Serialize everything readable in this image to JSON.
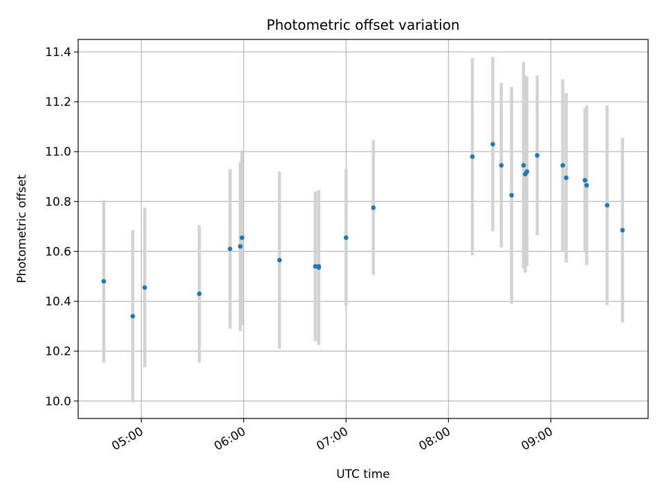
{
  "chart_data": {
    "type": "scatter",
    "title": "Photometric offset variation",
    "xlabel": "UTC time",
    "ylabel": "Photometric offset",
    "x_is_time": true,
    "xlim": [
      "04:23",
      "09:57"
    ],
    "ylim": [
      9.93,
      11.45
    ],
    "xticks": [
      "05:00",
      "06:00",
      "07:00",
      "08:00",
      "09:00"
    ],
    "yticks": [
      10.0,
      10.2,
      10.4,
      10.6,
      10.8,
      11.0,
      11.2,
      11.4
    ],
    "ytick_labels": [
      "10.0",
      "10.2",
      "10.4",
      "10.6",
      "10.8",
      "11.0",
      "11.2",
      "11.4"
    ],
    "grid": true,
    "colors": {
      "point": "#1f77b4",
      "errorbar": "#d3d3d3",
      "grid": "#b0b0b0"
    },
    "points": [
      {
        "x": "04:38",
        "y": 10.48,
        "err": 0.325
      },
      {
        "x": "04:55",
        "y": 10.34,
        "err": 0.345
      },
      {
        "x": "05:02",
        "y": 10.455,
        "err": 0.32
      },
      {
        "x": "05:34",
        "y": 10.43,
        "err": 0.275
      },
      {
        "x": "05:52",
        "y": 10.61,
        "err": 0.32
      },
      {
        "x": "05:58",
        "y": 10.62,
        "err": 0.34
      },
      {
        "x": "05:59",
        "y": 10.655,
        "err": 0.35
      },
      {
        "x": "06:21",
        "y": 10.565,
        "err": 0.355
      },
      {
        "x": "06:42",
        "y": 10.54,
        "err": 0.3
      },
      {
        "x": "06:44",
        "y": 10.54,
        "err": 0.305
      },
      {
        "x": "06:44",
        "y": 10.535,
        "err": 0.31
      },
      {
        "x": "07:00",
        "y": 10.655,
        "err": 0.275
      },
      {
        "x": "07:16",
        "y": 10.775,
        "err": 0.27
      },
      {
        "x": "08:14",
        "y": 10.98,
        "err": 0.395
      },
      {
        "x": "08:26",
        "y": 11.03,
        "err": 0.35
      },
      {
        "x": "08:31",
        "y": 10.945,
        "err": 0.33
      },
      {
        "x": "08:37",
        "y": 10.825,
        "err": 0.435
      },
      {
        "x": "08:44",
        "y": 10.945,
        "err": 0.415
      },
      {
        "x": "08:45",
        "y": 10.91,
        "err": 0.395
      },
      {
        "x": "08:46",
        "y": 10.92,
        "err": 0.38
      },
      {
        "x": "08:52",
        "y": 10.985,
        "err": 0.32
      },
      {
        "x": "09:07",
        "y": 10.945,
        "err": 0.345
      },
      {
        "x": "09:09",
        "y": 10.895,
        "err": 0.34
      },
      {
        "x": "09:20",
        "y": 10.885,
        "err": 0.29
      },
      {
        "x": "09:21",
        "y": 10.865,
        "err": 0.32
      },
      {
        "x": "09:33",
        "y": 10.785,
        "err": 0.4
      },
      {
        "x": "09:42",
        "y": 10.685,
        "err": 0.37
      }
    ]
  }
}
